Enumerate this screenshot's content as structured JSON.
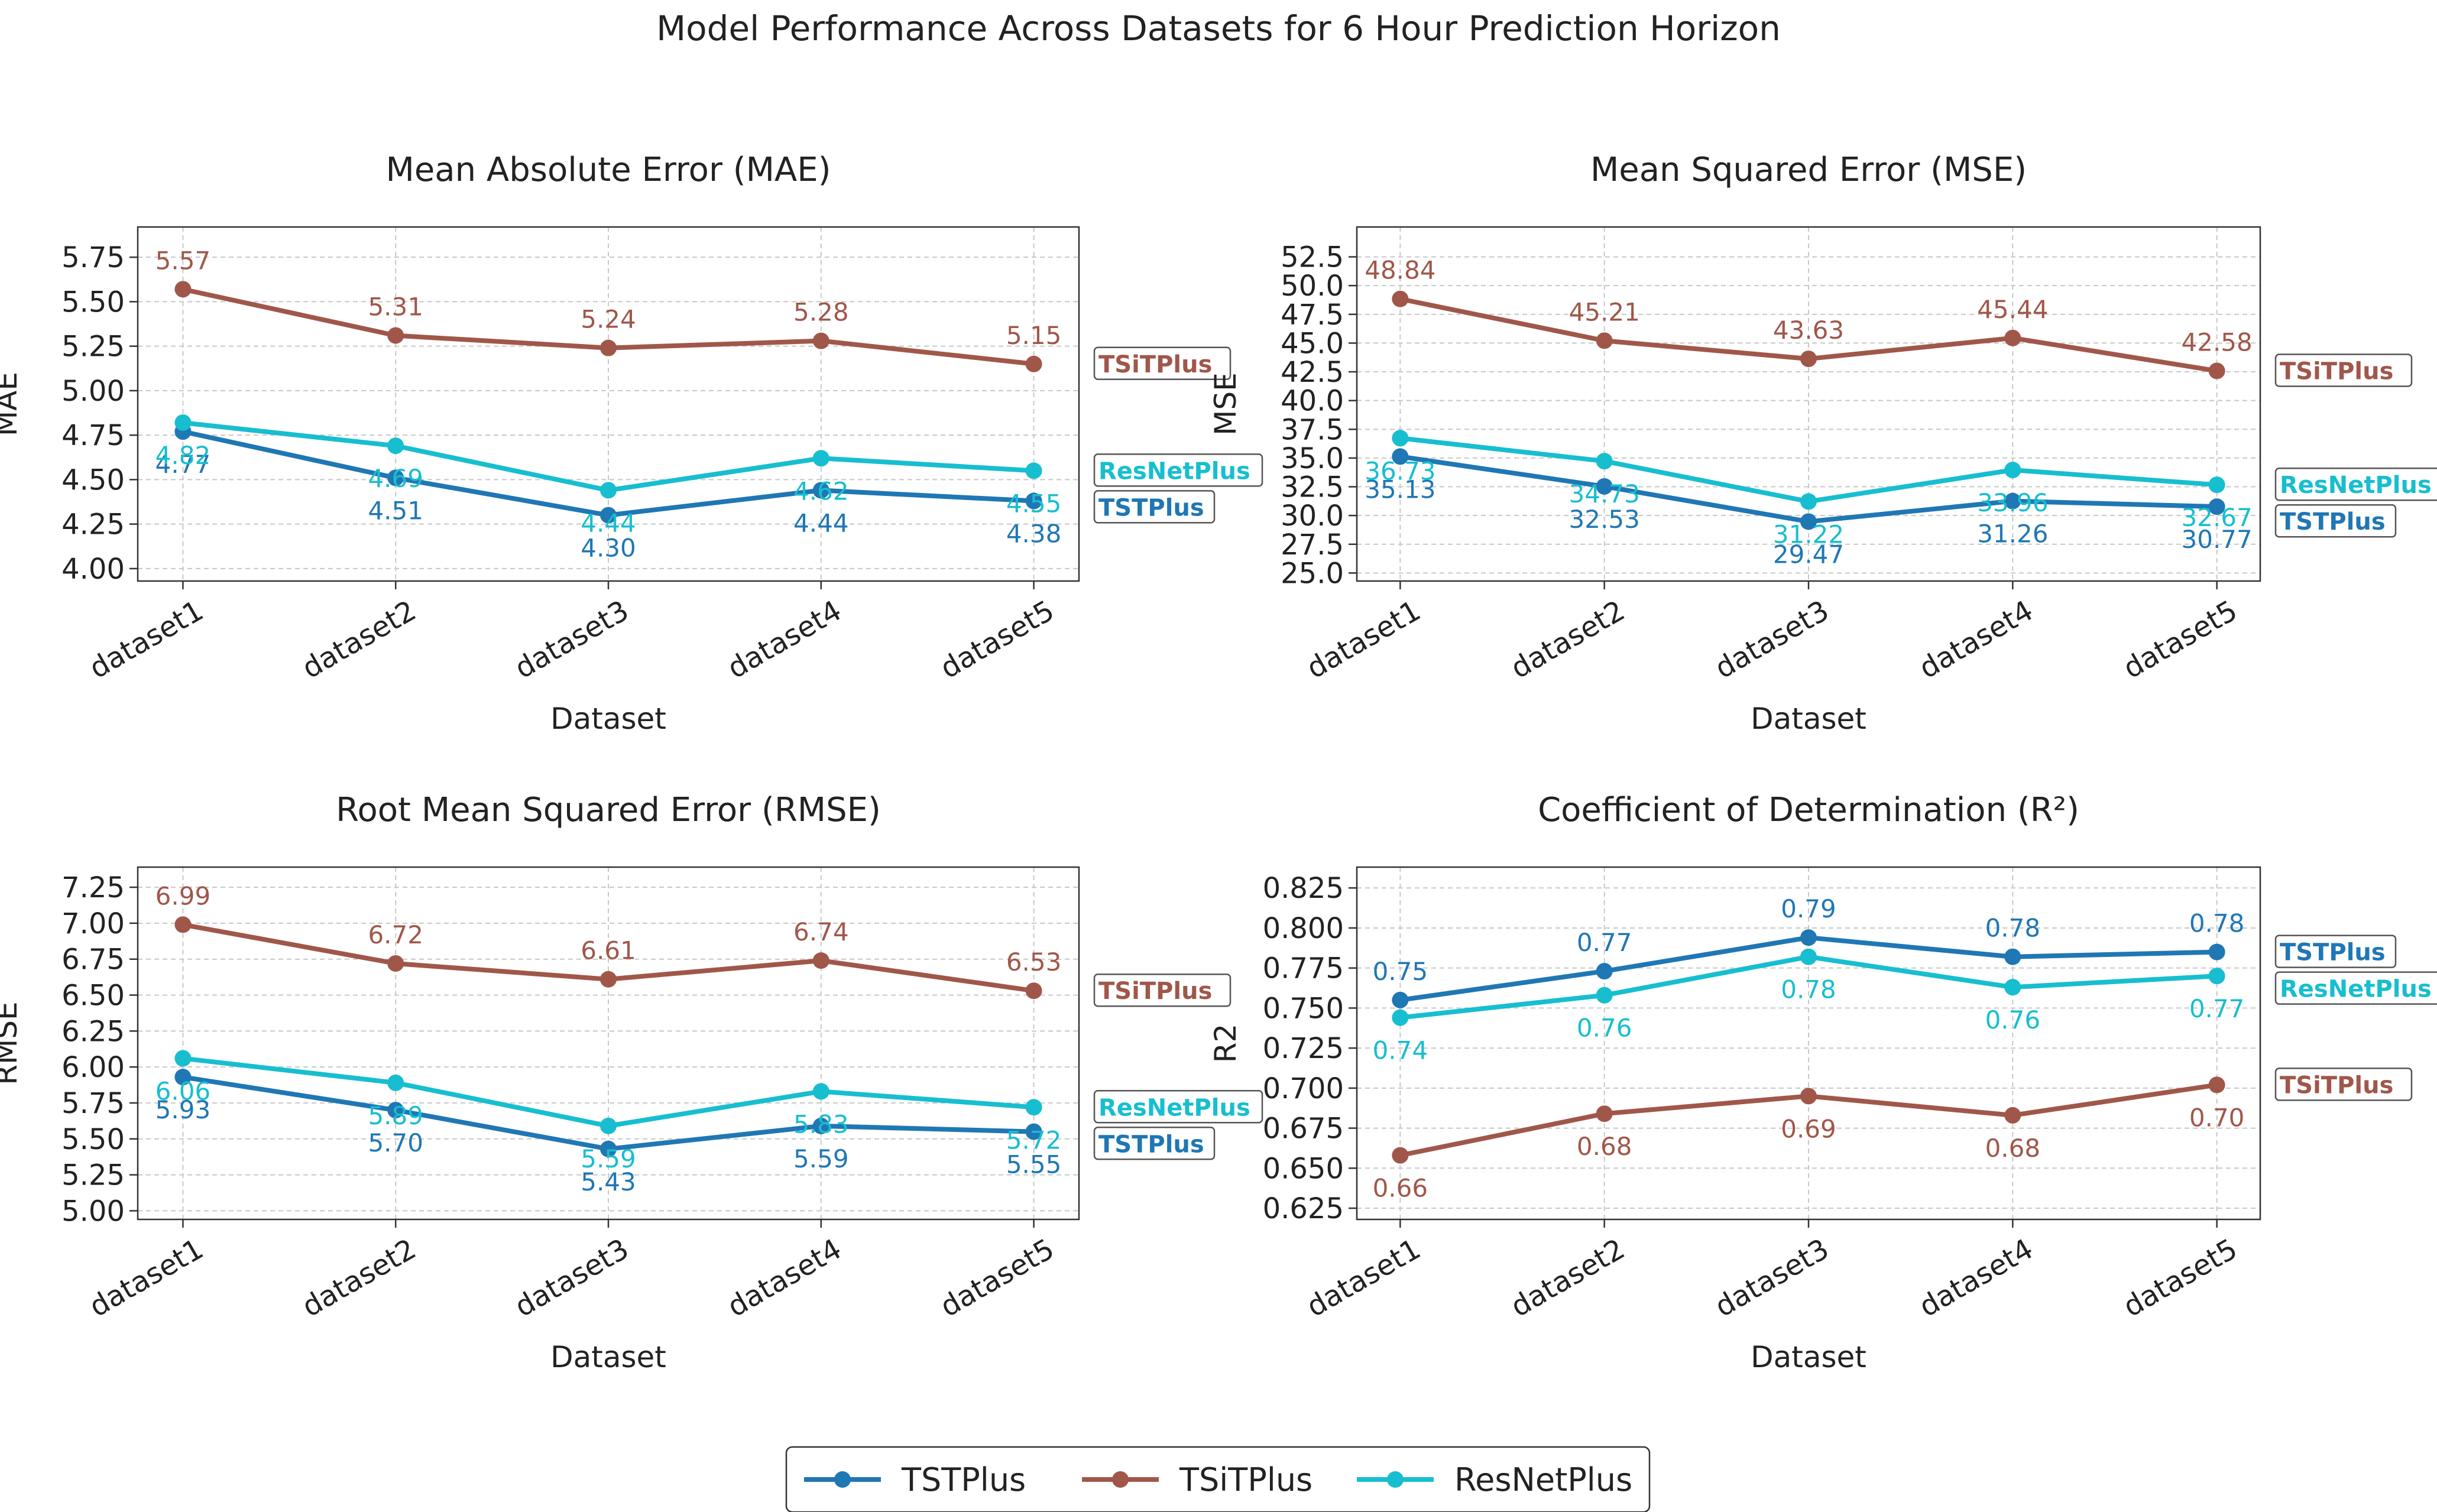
{
  "figure_title": "Model Performance Across Datasets for 6 Hour Prediction Horizon",
  "colors": {
    "TSTPlus": "#1f77b4",
    "TSiTPlus": "#a0574a",
    "ResNetPlus": "#17becf"
  },
  "legend": [
    "TSTPlus",
    "TSiTPlus",
    "ResNetPlus"
  ],
  "chart_data": [
    {
      "type": "line",
      "title": "Mean Absolute Error (MAE)",
      "xlabel": "Dataset",
      "ylabel": "MAE",
      "categories": [
        "dataset1",
        "dataset2",
        "dataset3",
        "dataset4",
        "dataset5"
      ],
      "ylim": [
        3.93,
        5.92
      ],
      "yticks": [
        "4.00",
        "4.25",
        "4.50",
        "4.75",
        "5.00",
        "5.25",
        "5.50",
        "5.75"
      ],
      "series": [
        {
          "name": "TSTPlus",
          "values": [
            4.77,
            4.51,
            4.3,
            4.44,
            4.38
          ],
          "labels": [
            "4.77",
            "4.51",
            "4.30",
            "4.44",
            "4.38"
          ]
        },
        {
          "name": "TSiTPlus",
          "values": [
            5.57,
            5.31,
            5.24,
            5.28,
            5.15
          ],
          "labels": [
            "5.57",
            "5.31",
            "5.24",
            "5.28",
            "5.15"
          ]
        },
        {
          "name": "ResNetPlus",
          "values": [
            4.82,
            4.69,
            4.44,
            4.62,
            4.55
          ],
          "labels": [
            "4.82",
            "4.69",
            "4.44",
            "4.62",
            "4.55"
          ]
        }
      ]
    },
    {
      "type": "line",
      "title": "Mean Squared Error (MSE)",
      "xlabel": "Dataset",
      "ylabel": "MSE",
      "categories": [
        "dataset1",
        "dataset2",
        "dataset3",
        "dataset4",
        "dataset5"
      ],
      "ylim": [
        24.3,
        55.1
      ],
      "yticks": [
        "25.0",
        "27.5",
        "30.0",
        "32.5",
        "35.0",
        "37.5",
        "40.0",
        "42.5",
        "45.0",
        "47.5",
        "50.0",
        "52.5"
      ],
      "series": [
        {
          "name": "TSTPlus",
          "values": [
            35.13,
            32.53,
            29.47,
            31.26,
            30.77
          ],
          "labels": [
            "35.13",
            "32.53",
            "29.47",
            "31.26",
            "30.77"
          ]
        },
        {
          "name": "TSiTPlus",
          "values": [
            48.84,
            45.21,
            43.63,
            45.44,
            42.58
          ],
          "labels": [
            "48.84",
            "45.21",
            "43.63",
            "45.44",
            "42.58"
          ]
        },
        {
          "name": "ResNetPlus",
          "values": [
            36.73,
            34.73,
            31.22,
            33.96,
            32.67
          ],
          "labels": [
            "36.73",
            "34.73",
            "31.22",
            "33.96",
            "32.67"
          ]
        }
      ]
    },
    {
      "type": "line",
      "title": "Root Mean Squared Error (RMSE)",
      "xlabel": "Dataset",
      "ylabel": "RMSE",
      "categories": [
        "dataset1",
        "dataset2",
        "dataset3",
        "dataset4",
        "dataset5"
      ],
      "ylim": [
        4.94,
        7.39
      ],
      "yticks": [
        "5.00",
        "5.25",
        "5.50",
        "5.75",
        "6.00",
        "6.25",
        "6.50",
        "6.75",
        "7.00",
        "7.25"
      ],
      "series": [
        {
          "name": "TSTPlus",
          "values": [
            5.93,
            5.7,
            5.43,
            5.59,
            5.55
          ],
          "labels": [
            "5.93",
            "5.70",
            "5.43",
            "5.59",
            "5.55"
          ]
        },
        {
          "name": "TSiTPlus",
          "values": [
            6.99,
            6.72,
            6.61,
            6.74,
            6.53
          ],
          "labels": [
            "6.99",
            "6.72",
            "6.61",
            "6.74",
            "6.53"
          ]
        },
        {
          "name": "ResNetPlus",
          "values": [
            6.06,
            5.89,
            5.59,
            5.83,
            5.72
          ],
          "labels": [
            "6.06",
            "5.89",
            "5.59",
            "5.83",
            "5.72"
          ]
        }
      ]
    },
    {
      "type": "line",
      "title": "Coefficient of Determination (R²)",
      "xlabel": "Dataset",
      "ylabel": "R2",
      "categories": [
        "dataset1",
        "dataset2",
        "dataset3",
        "dataset4",
        "dataset5"
      ],
      "ylim": [
        0.618,
        0.838
      ],
      "yticks": [
        "0.625",
        "0.650",
        "0.675",
        "0.700",
        "0.725",
        "0.750",
        "0.775",
        "0.800",
        "0.825"
      ],
      "series": [
        {
          "name": "TSTPlus",
          "values": [
            0.755,
            0.773,
            0.794,
            0.782,
            0.785
          ],
          "labels": [
            "0.75",
            "0.77",
            "0.79",
            "0.78",
            "0.78"
          ]
        },
        {
          "name": "TSiTPlus",
          "values": [
            0.658,
            0.684,
            0.695,
            0.683,
            0.702
          ],
          "labels": [
            "0.66",
            "0.68",
            "0.69",
            "0.68",
            "0.70"
          ]
        },
        {
          "name": "ResNetPlus",
          "values": [
            0.744,
            0.758,
            0.782,
            0.763,
            0.77
          ],
          "labels": [
            "0.74",
            "0.76",
            "0.78",
            "0.76",
            "0.77"
          ]
        }
      ]
    }
  ]
}
